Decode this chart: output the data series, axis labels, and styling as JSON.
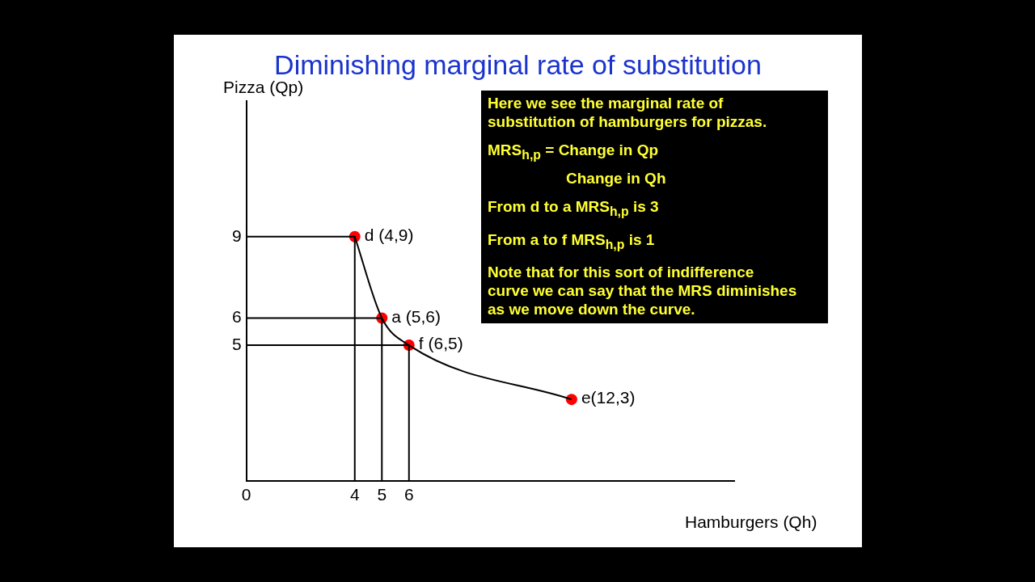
{
  "chart_data": {
    "type": "line",
    "title": "Diminishing marginal rate of substitution",
    "xlabel": "Hamburgers (Qh)",
    "ylabel": "Pizza (Qp)",
    "xlim": [
      0,
      18
    ],
    "ylim": [
      0,
      14
    ],
    "xticks": [
      {
        "value": 0,
        "label": "0"
      },
      4,
      5,
      6
    ],
    "yticks": [
      5,
      6,
      9
    ],
    "grid": false,
    "legend": false,
    "series": [
      {
        "type": "line",
        "color": "#000000",
        "marker": "none",
        "x": [
          0,
          4,
          4
        ],
        "values": [
          9,
          9,
          0
        ]
      },
      {
        "type": "line",
        "color": "#000000",
        "marker": "none",
        "x": [
          0,
          5,
          5
        ],
        "values": [
          6,
          6,
          0
        ]
      },
      {
        "type": "line",
        "color": "#000000",
        "marker": "none",
        "x": [
          0,
          6,
          6
        ],
        "values": [
          5,
          5,
          0
        ]
      },
      {
        "type": "line",
        "color": "#000000",
        "marker": "none",
        "x": [
          4,
          5,
          6,
          12
        ],
        "values": [
          9,
          6,
          5,
          3
        ]
      },
      {
        "type": "scatter",
        "color": "#ff0000",
        "marker": "circle",
        "x": [
          4,
          5,
          6,
          12
        ],
        "values": [
          9,
          6,
          5,
          3
        ]
      }
    ],
    "annotations": [
      {
        "text": "d (4,9)",
        "x": 4,
        "y": 9
      },
      {
        "text": "a (5,6)",
        "x": 5,
        "y": 6
      },
      {
        "text": "f (6,5)",
        "x": 6,
        "y": 5
      },
      {
        "text": "e(12,3)",
        "x": 12,
        "y": 3
      },
      "Here we see the marginal rate of substitution of hamburgers for pizzas.",
      "MRS$_{h,p}$ = Change in Qp",
      "Change in Qh",
      "From d to a MRS$_{h,p}$ is 3",
      "From a to f MRS$_{h,p}$ is 1",
      "Note that for this sort of indifference curve we can say that the MRS diminishes as we move down the curve."
    ]
  }
}
